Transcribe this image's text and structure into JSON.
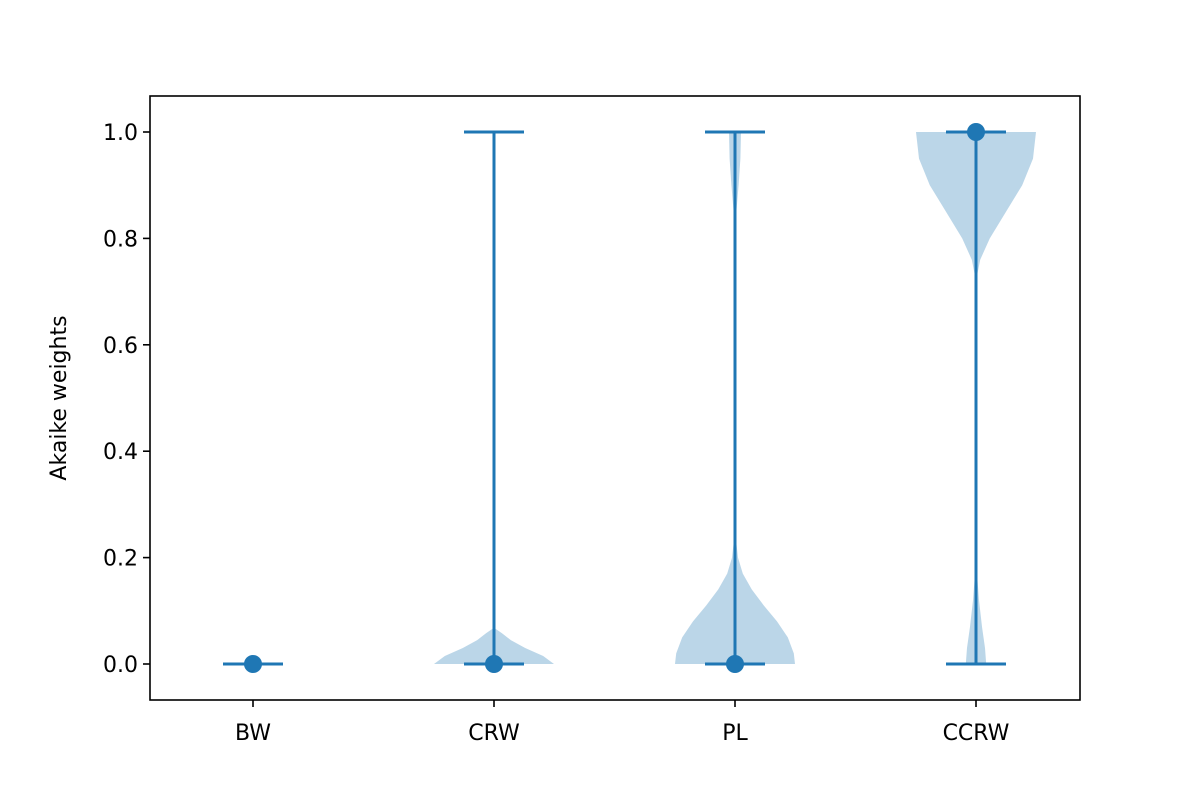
{
  "chart_data": {
    "type": "violin",
    "title": "",
    "xlabel": "",
    "ylabel": "Akaike weights",
    "categories": [
      "BW",
      "CRW",
      "PL",
      "CCRW"
    ],
    "ylim": [
      -0.067,
      1.067
    ],
    "yticks": [
      0.0,
      0.2,
      0.4,
      0.6,
      0.8,
      1.0
    ],
    "ytick_labels": [
      "0.0",
      "0.2",
      "0.4",
      "0.6",
      "0.8",
      "1.0"
    ],
    "grid": false,
    "legend": "none",
    "colors": {
      "line": "#1f77b4",
      "fill": "#1f77b4",
      "fill_opacity": 0.3,
      "frame": "#000000"
    },
    "violins": [
      {
        "category": "BW",
        "min": 0.0,
        "max": 0.0,
        "median": 0.0,
        "profile": []
      },
      {
        "category": "CRW",
        "min": 0.0,
        "max": 1.0,
        "median": 0.0,
        "profile": [
          [
            0.0,
            1.0
          ],
          [
            0.015,
            0.82
          ],
          [
            0.03,
            0.52
          ],
          [
            0.045,
            0.28
          ],
          [
            0.058,
            0.13
          ],
          [
            0.068,
            0.0
          ]
        ]
      },
      {
        "category": "PL",
        "min": 0.0,
        "max": 1.0,
        "median": 0.0,
        "profile": [
          [
            0.0,
            1.0
          ],
          [
            0.02,
            0.98
          ],
          [
            0.05,
            0.88
          ],
          [
            0.08,
            0.7
          ],
          [
            0.11,
            0.48
          ],
          [
            0.14,
            0.28
          ],
          [
            0.17,
            0.13
          ],
          [
            0.2,
            0.05
          ],
          [
            0.24,
            0.01
          ],
          [
            0.27,
            0.0
          ],
          [
            0.82,
            0.0
          ],
          [
            0.86,
            0.03
          ],
          [
            0.9,
            0.06
          ],
          [
            0.95,
            0.09
          ],
          [
            1.0,
            0.1
          ]
        ]
      },
      {
        "category": "CCRW",
        "min": 0.0,
        "max": 1.0,
        "median": 1.0,
        "profile": [
          [
            0.0,
            0.17
          ],
          [
            0.03,
            0.15
          ],
          [
            0.07,
            0.1
          ],
          [
            0.12,
            0.05
          ],
          [
            0.18,
            0.01
          ],
          [
            0.2,
            0.0
          ],
          [
            0.72,
            0.0
          ],
          [
            0.76,
            0.07
          ],
          [
            0.8,
            0.23
          ],
          [
            0.85,
            0.5
          ],
          [
            0.9,
            0.77
          ],
          [
            0.95,
            0.95
          ],
          [
            1.0,
            1.0
          ]
        ]
      }
    ]
  }
}
